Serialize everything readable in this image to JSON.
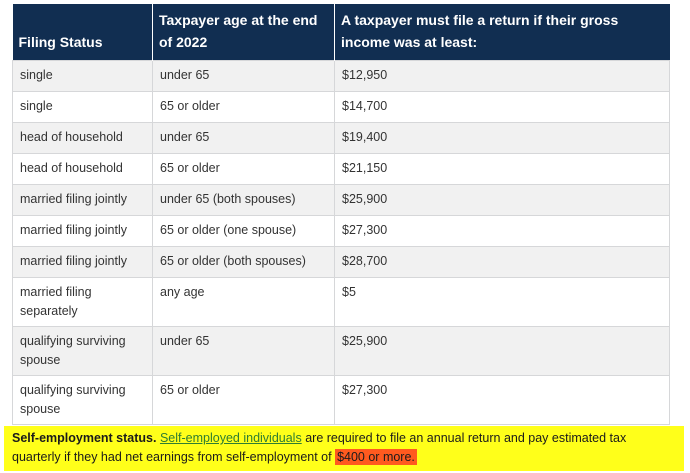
{
  "table": {
    "headers": [
      "Filing Status",
      "Taxpayer age at the end of 2022",
      "A taxpayer must file a return if their gross income was at least:"
    ],
    "rows": [
      [
        "single",
        "under 65",
        "$12,950"
      ],
      [
        "single",
        "65 or older",
        "$14,700"
      ],
      [
        "head of household",
        "under 65",
        "$19,400"
      ],
      [
        "head of household",
        "65 or older",
        "$21,150"
      ],
      [
        "married filing jointly",
        "under 65 (both spouses)",
        "$25,900"
      ],
      [
        "married filing jointly",
        "65 or older (one spouse)",
        "$27,300"
      ],
      [
        "married filing jointly",
        "65 or older (both spouses)",
        "$28,700"
      ],
      [
        "married filing separately",
        "any age",
        "$5"
      ],
      [
        "qualifying surviving spouse",
        "under 65",
        "$25,900"
      ],
      [
        "qualifying surviving spouse",
        "65 or older",
        "$27,300"
      ]
    ]
  },
  "note": {
    "lead": "Self-employment status.",
    "link": "Self-employed individuals",
    "text": "are required to file an annual return and pay estimated tax quarterly if they had net earnings from self-employment of",
    "highlight": "$400 or more.",
    "highlight_color": "#ffff1a",
    "emphasis_color": "#ff5a1f"
  },
  "colors": {
    "header_bg": "#112e51",
    "row_alt_bg": "#f1f1f1"
  }
}
